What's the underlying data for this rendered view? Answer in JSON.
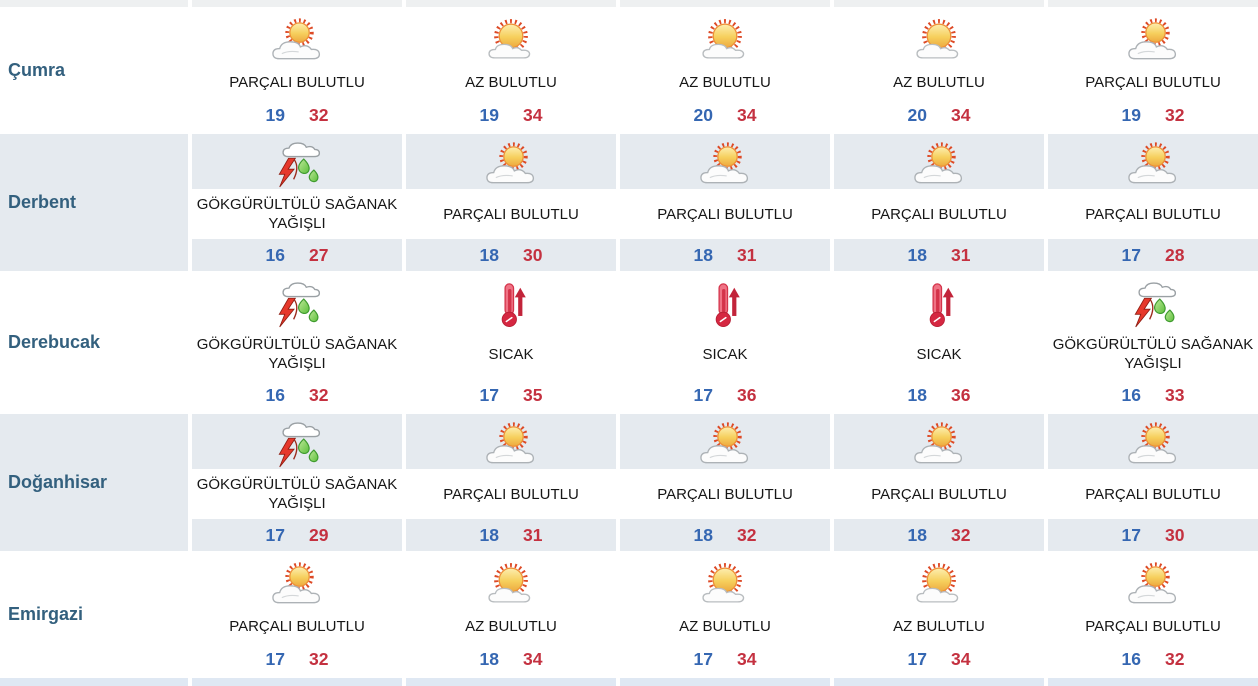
{
  "theme": {
    "stripe_color": "#e5eaef",
    "top_strip_color": "#eef0f1",
    "bottom_strip_color": "#dfe8f3",
    "city_label_color": "#33607e",
    "condition_text_color": "#161616",
    "min_temp_color": "#3567b2",
    "max_temp_color": "#c43140"
  },
  "table": {
    "rows": [
      {
        "city": "Çumra",
        "days": [
          {
            "icon": "partly-cloudy",
            "condition": "PARÇALI BULUTLU",
            "min": "19",
            "max": "32"
          },
          {
            "icon": "mostly-sunny",
            "condition": "AZ BULUTLU",
            "min": "19",
            "max": "34"
          },
          {
            "icon": "mostly-sunny",
            "condition": "AZ BULUTLU",
            "min": "20",
            "max": "34"
          },
          {
            "icon": "mostly-sunny",
            "condition": "AZ BULUTLU",
            "min": "20",
            "max": "34"
          },
          {
            "icon": "partly-cloudy",
            "condition": "PARÇALI BULUTLU",
            "min": "19",
            "max": "32"
          }
        ]
      },
      {
        "city": "Derbent",
        "days": [
          {
            "icon": "thunderstorm",
            "condition": "GÖKGÜRÜLTÜLÜ SAĞANAK YAĞIŞLI",
            "min": "16",
            "max": "27"
          },
          {
            "icon": "partly-cloudy",
            "condition": "PARÇALI BULUTLU",
            "min": "18",
            "max": "30"
          },
          {
            "icon": "partly-cloudy",
            "condition": "PARÇALI BULUTLU",
            "min": "18",
            "max": "31"
          },
          {
            "icon": "partly-cloudy",
            "condition": "PARÇALI BULUTLU",
            "min": "18",
            "max": "31"
          },
          {
            "icon": "partly-cloudy",
            "condition": "PARÇALI BULUTLU",
            "min": "17",
            "max": "28"
          }
        ]
      },
      {
        "city": "Derebucak",
        "days": [
          {
            "icon": "thunderstorm",
            "condition": "GÖKGÜRÜLTÜLÜ SAĞANAK YAĞIŞLI",
            "min": "16",
            "max": "32"
          },
          {
            "icon": "hot",
            "condition": "SICAK",
            "min": "17",
            "max": "35"
          },
          {
            "icon": "hot",
            "condition": "SICAK",
            "min": "17",
            "max": "36"
          },
          {
            "icon": "hot",
            "condition": "SICAK",
            "min": "18",
            "max": "36"
          },
          {
            "icon": "thunderstorm",
            "condition": "GÖKGÜRÜLTÜLÜ SAĞANAK YAĞIŞLI",
            "min": "16",
            "max": "33"
          }
        ]
      },
      {
        "city": "Doğanhisar",
        "days": [
          {
            "icon": "thunderstorm",
            "condition": "GÖKGÜRÜLTÜLÜ SAĞANAK YAĞIŞLI",
            "min": "17",
            "max": "29"
          },
          {
            "icon": "partly-cloudy",
            "condition": "PARÇALI BULUTLU",
            "min": "18",
            "max": "31"
          },
          {
            "icon": "partly-cloudy",
            "condition": "PARÇALI BULUTLU",
            "min": "18",
            "max": "32"
          },
          {
            "icon": "partly-cloudy",
            "condition": "PARÇALI BULUTLU",
            "min": "18",
            "max": "32"
          },
          {
            "icon": "partly-cloudy",
            "condition": "PARÇALI BULUTLU",
            "min": "17",
            "max": "30"
          }
        ]
      },
      {
        "city": "Emirgazi",
        "days": [
          {
            "icon": "partly-cloudy",
            "condition": "PARÇALI BULUTLU",
            "min": "17",
            "max": "32"
          },
          {
            "icon": "mostly-sunny",
            "condition": "AZ BULUTLU",
            "min": "18",
            "max": "34"
          },
          {
            "icon": "mostly-sunny",
            "condition": "AZ BULUTLU",
            "min": "17",
            "max": "34"
          },
          {
            "icon": "mostly-sunny",
            "condition": "AZ BULUTLU",
            "min": "17",
            "max": "34"
          },
          {
            "icon": "partly-cloudy",
            "condition": "PARÇALI BULUTLU",
            "min": "16",
            "max": "32"
          }
        ]
      }
    ]
  }
}
